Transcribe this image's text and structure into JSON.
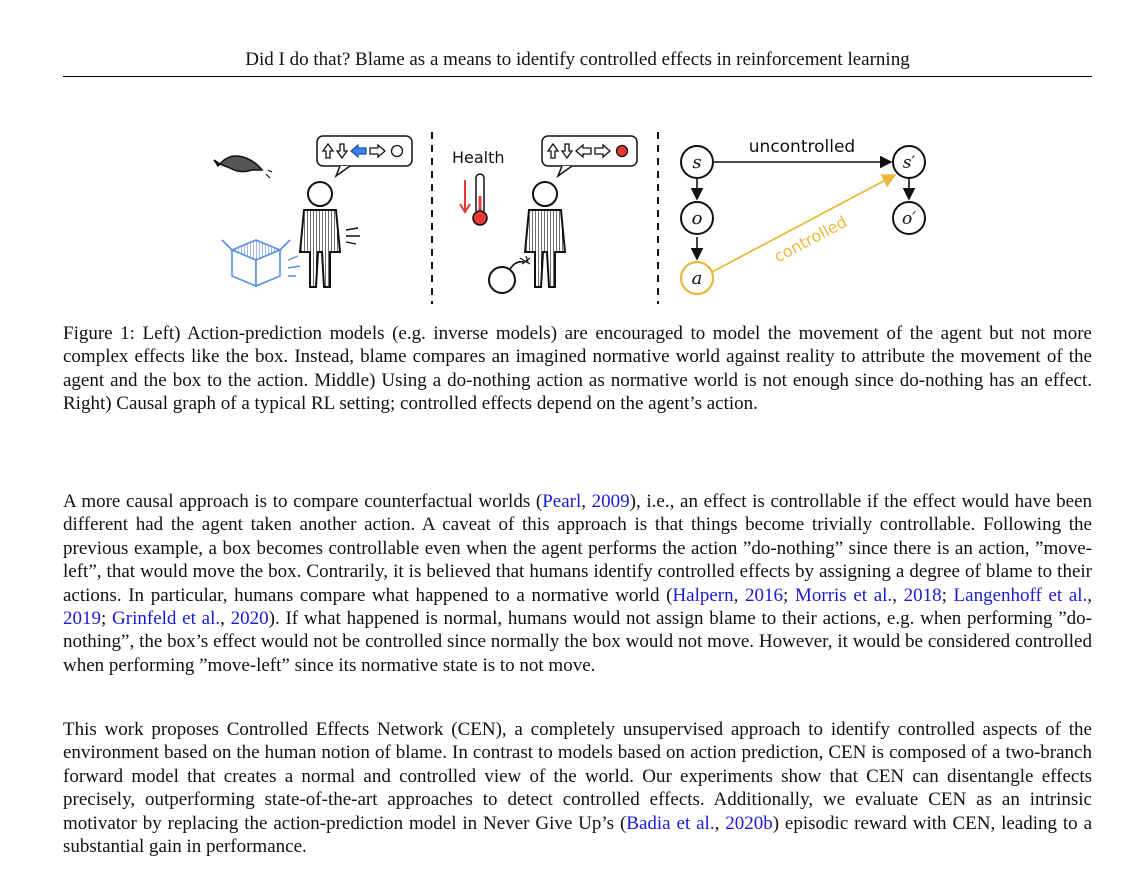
{
  "header": {
    "running_title": "Did I do that? Blame as a means to identify controlled effects in reinforcement learning"
  },
  "figure": {
    "middle_label": "Health",
    "graph": {
      "node_s": "s",
      "node_o": "o",
      "node_a": "a",
      "node_s_prime": "s′",
      "node_o_prime": "o′",
      "edge_uncontrolled": "uncontrolled",
      "edge_controlled": "controlled"
    },
    "colors": {
      "controlled": "#e9b93a",
      "action_blue": "#3b82f6",
      "action_red": "#e53935",
      "box_blue": "#5b8fe0"
    },
    "caption": "Figure 1: Left) Action-prediction models (e.g. inverse models) are encouraged to model the movement of the agent but not more complex effects like the box. Instead, blame compares an imagined normative world against reality to attribute the movement of the agent and the box to the action. Middle) Using a do-nothing action as normative world is not enough since do-nothing has an effect. Right) Causal graph of a typical RL setting; controlled effects depend on the agent’s action."
  },
  "body": {
    "para1": {
      "t1": "A more causal approach is to compare counterfactual worlds (",
      "c1": "Pearl",
      "t2": ", ",
      "c2": "2009",
      "t3": "), i.e., an effect is controllable if the effect would have been different had the agent taken another action. A caveat of this approach is that things become trivially controllable. Following the previous example, a box becomes controllable even when the agent performs the action ”do-nothing” since there is an action, ”move-left”, that would move the box. Contrarily, it is believed that humans identify controlled effects by assigning a degree of blame to their actions. In particular, humans compare what happened to a normative world (",
      "c3": "Halpern",
      "t4": ", ",
      "c4": "2016",
      "t5": "; ",
      "c5": "Morris et al.",
      "t6": ", ",
      "c6": "2018",
      "t7": "; ",
      "c7": "Langenhoff et al.",
      "t8": ", ",
      "c8": "2019",
      "t9": "; ",
      "c9": "Grinfeld et al.",
      "t10": ", ",
      "c10": "2020",
      "t11": "). If what happened is normal, humans would not assign blame to their actions, e.g. when performing ”do-nothing”, the box’s effect would not be controlled since normally the box would not move. However, it would be considered controlled when performing ”move-left” since its normative state is to not move."
    },
    "para2": {
      "t1": "This work proposes Controlled Effects Network (CEN), a completely unsupervised approach to identify controlled aspects of the environment based on the human notion of blame. In contrast to models based on action prediction, CEN is composed of a two-branch forward model that creates a normal and controlled view of the world. Our experiments show that CEN can disentangle effects precisely, outperforming state-of-the-art approaches to detect controlled effects. Additionally, we evaluate CEN as an intrinsic motivator by replacing the action-prediction model in Never Give Up’s (",
      "c1": "Badia et al.",
      "t2": ", ",
      "c2": "2020b",
      "t3": ") episodic reward with CEN, leading to a substantial gain in performance."
    }
  }
}
